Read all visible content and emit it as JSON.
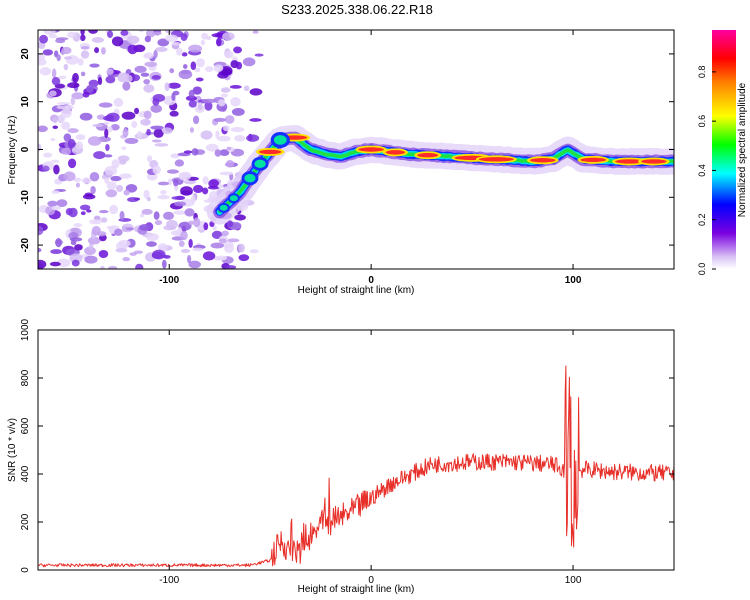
{
  "title": "S233.2025.338.06.22.R18",
  "colors": {
    "line": "#e8302a",
    "axis": "#000000"
  },
  "chart_data": [
    {
      "type": "heatmap",
      "xlabel": "Height of straight line (km)",
      "ylabel": "Frequency (Hz)",
      "xlim": [
        -165,
        150
      ],
      "ylim": [
        -25,
        25
      ],
      "x_ticks": [
        -100,
        0,
        100
      ],
      "y_ticks": [
        -20,
        -10,
        0,
        10,
        20
      ],
      "colorbar": {
        "label": "Normalized spectral amplitude",
        "range": [
          0,
          0.97
        ],
        "ticks": [
          0.0,
          0.2,
          0.4,
          0.6,
          0.8
        ],
        "colormap": "rainbow (white-purple-blue-cyan-green-yellow-red-magenta)"
      },
      "ridge": {
        "x": [
          -75,
          -65,
          -55,
          -45,
          -38,
          -30,
          -22,
          -15,
          -8,
          0,
          10,
          20,
          40,
          60,
          80,
          90,
          97,
          105,
          120,
          150
        ],
        "y": [
          -13,
          -9,
          -3,
          2,
          2.5,
          0,
          -1,
          -1.5,
          -0.5,
          0,
          -0.5,
          -1,
          -1.5,
          -2,
          -2.5,
          -2,
          0,
          -2,
          -2.5,
          -2.5
        ]
      },
      "noise_region_x": [
        -165,
        -65
      ]
    },
    {
      "type": "line",
      "xlabel": "Height of straight line (km)",
      "ylabel": "SNR (10 * v/v)",
      "xlim": [
        -165,
        150
      ],
      "ylim": [
        0,
        1000
      ],
      "x_ticks": [
        -100,
        0,
        100
      ],
      "y_ticks": [
        0,
        200,
        400,
        600,
        800,
        1000
      ],
      "series": [
        {
          "x": [
            -165,
            -60,
            -50,
            -45,
            -40,
            -35,
            -30,
            -25,
            -20,
            -10,
            0,
            10,
            20,
            30,
            50,
            70,
            90,
            95,
            100,
            105,
            120,
            150
          ],
          "y": [
            20,
            20,
            40,
            120,
            80,
            60,
            150,
            200,
            200,
            240,
            300,
            360,
            400,
            440,
            450,
            450,
            440,
            420,
            410,
            420,
            410,
            400
          ]
        }
      ]
    }
  ]
}
